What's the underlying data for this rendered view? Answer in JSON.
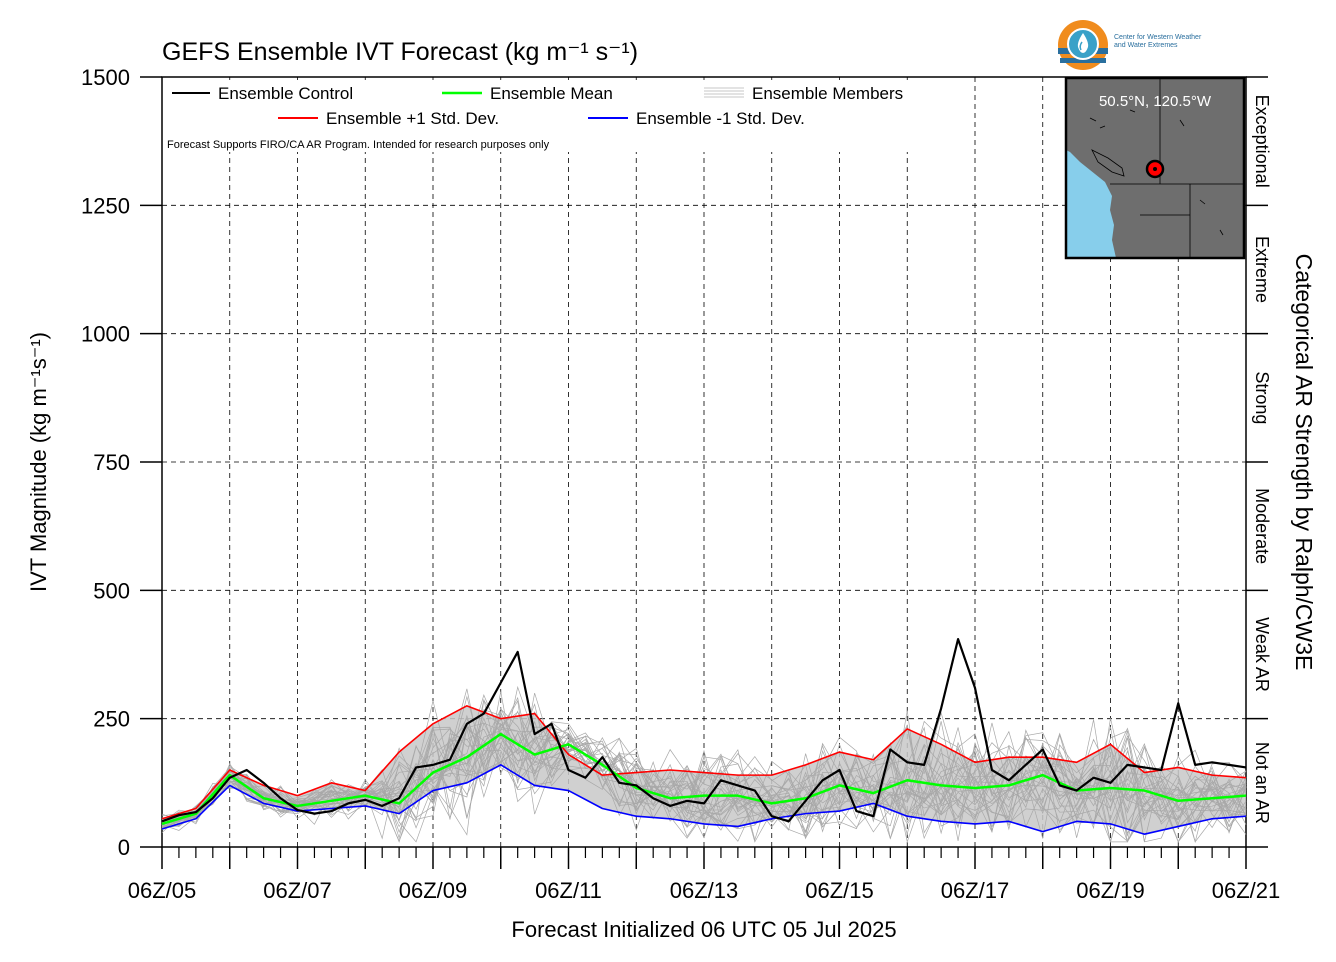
{
  "title": "GEFS Ensemble IVT Forecast (kg m⁻¹ s⁻¹)",
  "logo": {
    "icon": "cw3e-water-drop-icon",
    "text_line1": "Center for Western Weather",
    "text_line2": "and Water Extremes",
    "colors": {
      "orange": "#f08c1e",
      "blue": "#2a6f9e",
      "teal": "#3aa1c8"
    }
  },
  "disclaimer": "Forecast Supports FIRO/CA AR Program. Intended for research purposes only",
  "inset_map": {
    "label": "50.5°N, 120.5°W",
    "colors": {
      "land": "#6e6e6e",
      "water": "#87ceeb",
      "marker": "#ff0000"
    }
  },
  "legend": [
    {
      "label": "Ensemble Control",
      "color": "#000000",
      "style": "line"
    },
    {
      "label": "Ensemble Mean",
      "color": "#00ff00",
      "style": "line"
    },
    {
      "label": "Ensemble Members",
      "color": "#b4b4b4",
      "style": "multi"
    },
    {
      "label": "Ensemble +1 Std. Dev.",
      "color": "#ff0000",
      "style": "line"
    },
    {
      "label": "Ensemble -1 Std. Dev.",
      "color": "#0000ff",
      "style": "line"
    }
  ],
  "right_axis": {
    "title": "Categorical AR Strength by Ralph/CW3E",
    "categories": [
      "Not an AR",
      "Weak AR",
      "Moderate",
      "Strong",
      "Extreme",
      "Exceptional"
    ]
  },
  "chart_data": {
    "type": "line",
    "title": "GEFS Ensemble IVT Forecast (kg m⁻¹ s⁻¹)",
    "xlabel": "Forecast Initialized 06 UTC 05 Jul 2025",
    "ylabel": "IVT Magnitude (kg m⁻¹s⁻¹)",
    "ylim": [
      0,
      1500
    ],
    "yticks": [
      0,
      250,
      500,
      750,
      1000,
      1250,
      1500
    ],
    "ytick_labels": [
      "0",
      "250",
      "500",
      "750",
      "1000",
      "1250",
      "1500"
    ],
    "xlim_days": [
      0,
      16
    ],
    "xtick_labels": [
      "06Z/05",
      "06Z/07",
      "06Z/09",
      "06Z/11",
      "06Z/13",
      "06Z/15",
      "06Z/17",
      "06Z/19",
      "06Z/21"
    ],
    "grid": true,
    "legend_position": "top-left",
    "members_band": {
      "color": "#c8c8c8",
      "member_count": 30
    },
    "series": [
      {
        "name": "Ensemble Control",
        "color": "#000000",
        "x_days": [
          0,
          0.25,
          0.5,
          0.75,
          1,
          1.25,
          1.5,
          1.75,
          2,
          2.25,
          2.5,
          2.75,
          3,
          3.25,
          3.5,
          3.75,
          4,
          4.25,
          4.5,
          4.75,
          5,
          5.25,
          5.5,
          5.75,
          6,
          6.25,
          6.5,
          6.75,
          7,
          7.25,
          7.5,
          7.75,
          8,
          8.25,
          8.5,
          8.75,
          9,
          9.25,
          9.5,
          9.75,
          10,
          10.25,
          10.5,
          10.75,
          11,
          11.25,
          11.5,
          11.75,
          12,
          12.25,
          12.5,
          12.75,
          13,
          13.25,
          13.5,
          13.75,
          14,
          14.25,
          14.5,
          14.75,
          15,
          15.25,
          15.5,
          15.75,
          16
        ],
        "values": [
          50,
          62,
          68,
          95,
          135,
          150,
          125,
          95,
          72,
          65,
          70,
          85,
          92,
          80,
          95,
          155,
          160,
          170,
          240,
          260,
          320,
          380,
          220,
          240,
          150,
          135,
          175,
          125,
          120,
          95,
          80,
          90,
          85,
          130,
          120,
          110,
          60,
          50,
          90,
          130,
          150,
          70,
          60,
          190,
          165,
          160,
          270,
          405,
          310,
          150,
          130,
          160,
          190,
          120,
          110,
          135,
          125,
          160,
          155,
          150,
          280,
          160,
          165,
          160,
          155
        ]
      },
      {
        "name": "Ensemble Mean",
        "color": "#00ff00",
        "x_days": [
          0,
          0.5,
          1,
          1.5,
          2,
          2.5,
          3,
          3.5,
          4,
          4.5,
          5,
          5.5,
          6,
          6.5,
          7,
          7.5,
          8,
          8.5,
          9,
          9.5,
          10,
          10.5,
          11,
          11.5,
          12,
          12.5,
          13,
          13.5,
          14,
          14.5,
          15,
          15.5,
          16
        ],
        "values": [
          45,
          65,
          140,
          95,
          80,
          90,
          100,
          85,
          145,
          175,
          220,
          180,
          200,
          160,
          115,
          95,
          100,
          100,
          85,
          95,
          120,
          105,
          130,
          120,
          115,
          120,
          140,
          110,
          115,
          110,
          90,
          95,
          100
        ]
      },
      {
        "name": "Ensemble +1 Std. Dev.",
        "color": "#ff0000",
        "x_days": [
          0,
          0.5,
          1,
          1.5,
          2,
          2.5,
          3,
          3.5,
          4,
          4.5,
          5,
          5.5,
          6,
          6.5,
          7,
          7.5,
          8,
          8.5,
          9,
          9.5,
          10,
          10.5,
          11,
          11.5,
          12,
          12.5,
          13,
          13.5,
          14,
          14.5,
          15,
          15.5,
          16
        ],
        "values": [
          55,
          75,
          150,
          120,
          100,
          125,
          110,
          185,
          240,
          275,
          250,
          260,
          180,
          140,
          145,
          150,
          145,
          140,
          140,
          160,
          185,
          170,
          230,
          200,
          165,
          175,
          175,
          165,
          200,
          145,
          155,
          140,
          135
        ]
      },
      {
        "name": "Ensemble -1 Std. Dev.",
        "color": "#0000ff",
        "x_days": [
          0,
          0.5,
          1,
          1.5,
          2,
          2.5,
          3,
          3.5,
          4,
          4.5,
          5,
          5.5,
          6,
          6.5,
          7,
          7.5,
          8,
          8.5,
          9,
          9.5,
          10,
          10.5,
          11,
          11.5,
          12,
          12.5,
          13,
          13.5,
          14,
          14.5,
          15,
          15.5,
          16
        ],
        "values": [
          35,
          55,
          120,
          85,
          70,
          75,
          80,
          65,
          110,
          125,
          160,
          120,
          110,
          75,
          60,
          55,
          45,
          40,
          55,
          65,
          70,
          85,
          60,
          50,
          45,
          50,
          30,
          50,
          45,
          25,
          40,
          55,
          60
        ]
      }
    ]
  }
}
